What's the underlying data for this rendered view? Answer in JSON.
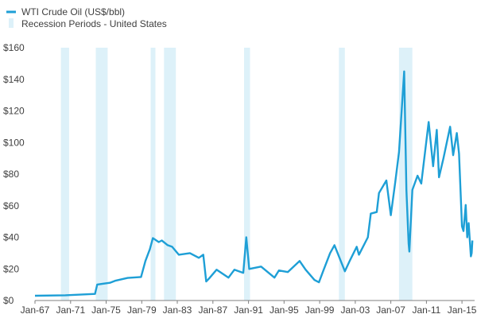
{
  "chart_data": {
    "type": "line",
    "legend": {
      "line_label": "WTI Crude Oil (US$/bbl)",
      "band_label": "Recession Periods - United States",
      "placement": "top-left"
    },
    "colors": {
      "line": "#1e9fd6",
      "band": "#ddf1f9",
      "axis": "#7f7f7f",
      "text": "#404040"
    },
    "x_range": [
      "1967-01",
      "2016-06"
    ],
    "ylim": [
      0,
      160
    ],
    "grid": false,
    "x_ticks": [
      {
        "label": "Jan-67",
        "date": "1967-01"
      },
      {
        "label": "Jan-71",
        "date": "1971-01"
      },
      {
        "label": "Jan-75",
        "date": "1975-01"
      },
      {
        "label": "Jan-79",
        "date": "1979-01"
      },
      {
        "label": "Jan-83",
        "date": "1983-01"
      },
      {
        "label": "Jan-87",
        "date": "1987-01"
      },
      {
        "label": "Jan-91",
        "date": "1991-01"
      },
      {
        "label": "Jan-95",
        "date": "1995-01"
      },
      {
        "label": "Jan-99",
        "date": "1999-01"
      },
      {
        "label": "Jan-03",
        "date": "2003-01"
      },
      {
        "label": "Jan-07",
        "date": "2007-01"
      },
      {
        "label": "Jan-11",
        "date": "2011-01"
      },
      {
        "label": "Jan-15",
        "date": "2015-01"
      }
    ],
    "y_ticks": [
      {
        "label": "$0",
        "value": 0
      },
      {
        "label": "$20",
        "value": 20
      },
      {
        "label": "$40",
        "value": 40
      },
      {
        "label": "$60",
        "value": 60
      },
      {
        "label": "$80",
        "value": 80
      },
      {
        "label": "$100",
        "value": 100
      },
      {
        "label": "$120",
        "value": 120
      },
      {
        "label": "$140",
        "value": 140
      },
      {
        "label": "$160",
        "value": 160
      }
    ],
    "recessions": [
      {
        "start": "1969-12",
        "end": "1970-11"
      },
      {
        "start": "1973-11",
        "end": "1975-03"
      },
      {
        "start": "1980-01",
        "end": "1980-07"
      },
      {
        "start": "1981-07",
        "end": "1982-11"
      },
      {
        "start": "1990-07",
        "end": "1991-03"
      },
      {
        "start": "2001-03",
        "end": "2001-11"
      },
      {
        "start": "2007-12",
        "end": "2009-06"
      }
    ],
    "series": [
      {
        "name": "WTI Crude Oil (US$/bbl)",
        "points": [
          [
            "1967-01",
            3.0
          ],
          [
            "1970-06",
            3.3
          ],
          [
            "1973-10",
            4.2
          ],
          [
            "1974-01",
            10.1
          ],
          [
            "1975-06",
            11.2
          ],
          [
            "1976-01",
            12.5
          ],
          [
            "1977-06",
            14.3
          ],
          [
            "1978-12",
            14.9
          ],
          [
            "1979-06",
            25.0
          ],
          [
            "1979-12",
            32.5
          ],
          [
            "1980-04",
            39.5
          ],
          [
            "1980-12",
            37.0
          ],
          [
            "1981-04",
            38.0
          ],
          [
            "1981-12",
            35.0
          ],
          [
            "1982-06",
            34.0
          ],
          [
            "1983-03",
            29.0
          ],
          [
            "1984-06",
            30.0
          ],
          [
            "1985-06",
            27.0
          ],
          [
            "1985-12",
            29.0
          ],
          [
            "1986-04",
            12.0
          ],
          [
            "1986-08",
            14.0
          ],
          [
            "1987-06",
            19.5
          ],
          [
            "1988-10",
            14.5
          ],
          [
            "1989-06",
            19.5
          ],
          [
            "1990-06",
            17.5
          ],
          [
            "1990-10",
            40.0
          ],
          [
            "1991-02",
            20.0
          ],
          [
            "1992-06",
            21.5
          ],
          [
            "1993-12",
            14.5
          ],
          [
            "1994-06",
            19.0
          ],
          [
            "1995-06",
            18.0
          ],
          [
            "1996-10",
            25.0
          ],
          [
            "1997-06",
            19.5
          ],
          [
            "1998-06",
            13.0
          ],
          [
            "1998-12",
            11.5
          ],
          [
            "1999-06",
            19.0
          ],
          [
            "2000-03",
            30.0
          ],
          [
            "2000-09",
            35.0
          ],
          [
            "2001-03",
            28.0
          ],
          [
            "2001-11",
            18.5
          ],
          [
            "2002-06",
            25.5
          ],
          [
            "2003-03",
            34.0
          ],
          [
            "2003-06",
            29.0
          ],
          [
            "2004-06",
            40.0
          ],
          [
            "2004-10",
            55.0
          ],
          [
            "2005-06",
            56.0
          ],
          [
            "2005-09",
            68.0
          ],
          [
            "2006-07",
            76.0
          ],
          [
            "2007-01",
            54.0
          ],
          [
            "2007-07",
            75.0
          ],
          [
            "2007-12",
            94.0
          ],
          [
            "2008-07",
            145.0
          ],
          [
            "2008-10",
            70.0
          ],
          [
            "2009-01",
            36.0
          ],
          [
            "2009-02",
            31.0
          ],
          [
            "2009-06",
            70.0
          ],
          [
            "2010-01",
            79.0
          ],
          [
            "2010-06",
            74.0
          ],
          [
            "2011-04",
            113.0
          ],
          [
            "2011-10",
            85.0
          ],
          [
            "2012-03",
            108.0
          ],
          [
            "2012-06",
            78.0
          ],
          [
            "2012-12",
            90.0
          ],
          [
            "2013-09",
            110.0
          ],
          [
            "2014-01",
            92.0
          ],
          [
            "2014-06",
            106.0
          ],
          [
            "2014-09",
            93.0
          ],
          [
            "2015-01",
            47.0
          ],
          [
            "2015-03",
            44.0
          ],
          [
            "2015-06",
            60.5
          ],
          [
            "2015-08",
            40.0
          ],
          [
            "2015-10",
            49.0
          ],
          [
            "2016-01",
            28.0
          ],
          [
            "2016-02",
            30.0
          ],
          [
            "2016-03",
            38.0
          ]
        ]
      }
    ]
  }
}
